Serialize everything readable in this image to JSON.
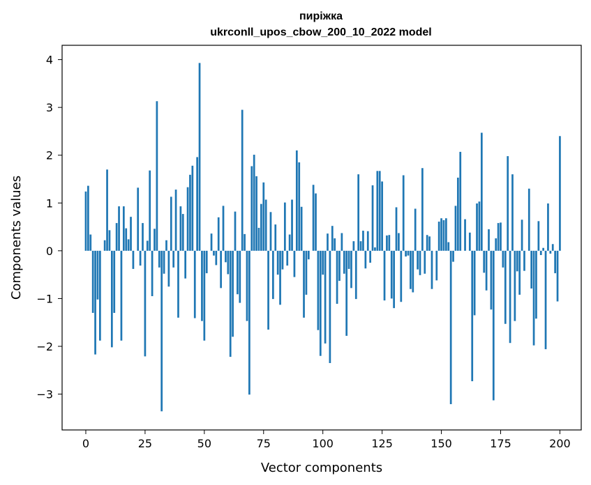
{
  "chart_data": {
    "type": "bar",
    "title_line1": "пиріжка",
    "title_line2": "ukrconll_upos_cbow_200_10_2022 model",
    "xlabel": "Vector components",
    "ylabel": "Components values",
    "xlim": [
      -10,
      209
    ],
    "ylim": [
      -3.75,
      4.3
    ],
    "xticks": [
      0,
      25,
      50,
      75,
      100,
      125,
      150,
      175,
      200
    ],
    "yticks": [
      4,
      3,
      2,
      1,
      0,
      -1,
      -2,
      -3
    ],
    "ytick_labels": [
      "4",
      "3",
      "2",
      "1",
      "0",
      "−1",
      "−2",
      "−3"
    ],
    "bar_color": "#1f77b4",
    "grid": false,
    "x_start": 0,
    "values": [
      1.24,
      1.36,
      0.34,
      -1.3,
      -2.17,
      -1.02,
      -1.88,
      0.0,
      0.22,
      1.7,
      0.43,
      -2.02,
      -1.3,
      0.58,
      0.93,
      -1.88,
      0.93,
      0.47,
      0.24,
      0.71,
      -0.38,
      0.0,
      1.32,
      -0.31,
      0.58,
      -2.21,
      0.21,
      1.68,
      -0.95,
      0.46,
      3.13,
      -0.35,
      -3.36,
      -0.48,
      0.22,
      -0.75,
      1.13,
      -0.35,
      1.28,
      -1.4,
      0.93,
      0.77,
      -0.58,
      1.33,
      1.59,
      1.78,
      -1.41,
      1.96,
      3.93,
      -1.47,
      -1.88,
      -0.47,
      0.0,
      0.36,
      -0.1,
      -0.3,
      0.7,
      -0.78,
      0.94,
      -0.24,
      -0.49,
      -2.22,
      -1.8,
      0.82,
      -0.91,
      -1.09,
      2.95,
      0.35,
      -1.47,
      -3.01,
      1.77,
      2.01,
      1.56,
      0.48,
      0.98,
      1.43,
      1.07,
      -1.65,
      0.81,
      -1.01,
      0.55,
      -0.5,
      -1.13,
      -0.39,
      1.01,
      -0.31,
      0.34,
      1.07,
      -0.55,
      2.1,
      1.85,
      0.92,
      -1.4,
      -0.92,
      -0.18,
      0.0,
      1.38,
      1.2,
      -1.66,
      -2.2,
      -0.5,
      -1.94,
      0.36,
      -2.35,
      0.52,
      0.26,
      -1.11,
      -0.63,
      0.37,
      -0.48,
      -1.78,
      -0.38,
      -0.78,
      0.2,
      -1.01,
      1.6,
      0.2,
      0.42,
      -0.37,
      0.41,
      -0.25,
      1.37,
      0.07,
      1.67,
      1.67,
      1.45,
      -1.04,
      0.32,
      0.33,
      -1.0,
      -1.2,
      0.91,
      0.37,
      -1.07,
      1.58,
      -0.12,
      -0.1,
      -0.8,
      -0.87,
      0.88,
      -0.39,
      -0.51,
      1.73,
      -0.48,
      0.33,
      0.3,
      -0.8,
      0.0,
      -0.62,
      0.61,
      0.68,
      0.64,
      0.68,
      0.18,
      -3.21,
      -0.23,
      0.94,
      1.53,
      2.07,
      0.0,
      0.66,
      0.0,
      0.38,
      -2.73,
      -1.35,
      0.99,
      1.03,
      2.47,
      -0.46,
      -0.83,
      0.45,
      -1.23,
      -3.13,
      0.26,
      0.58,
      0.59,
      -0.35,
      -1.53,
      1.98,
      -1.93,
      1.6,
      -1.47,
      -0.43,
      -0.92,
      0.65,
      -0.42,
      0.0,
      1.3,
      -0.79,
      -1.98,
      -1.42,
      0.62,
      -0.09,
      0.06,
      -2.06,
      0.99,
      -0.06,
      0.14,
      -0.47,
      -1.06,
      2.4
    ]
  }
}
